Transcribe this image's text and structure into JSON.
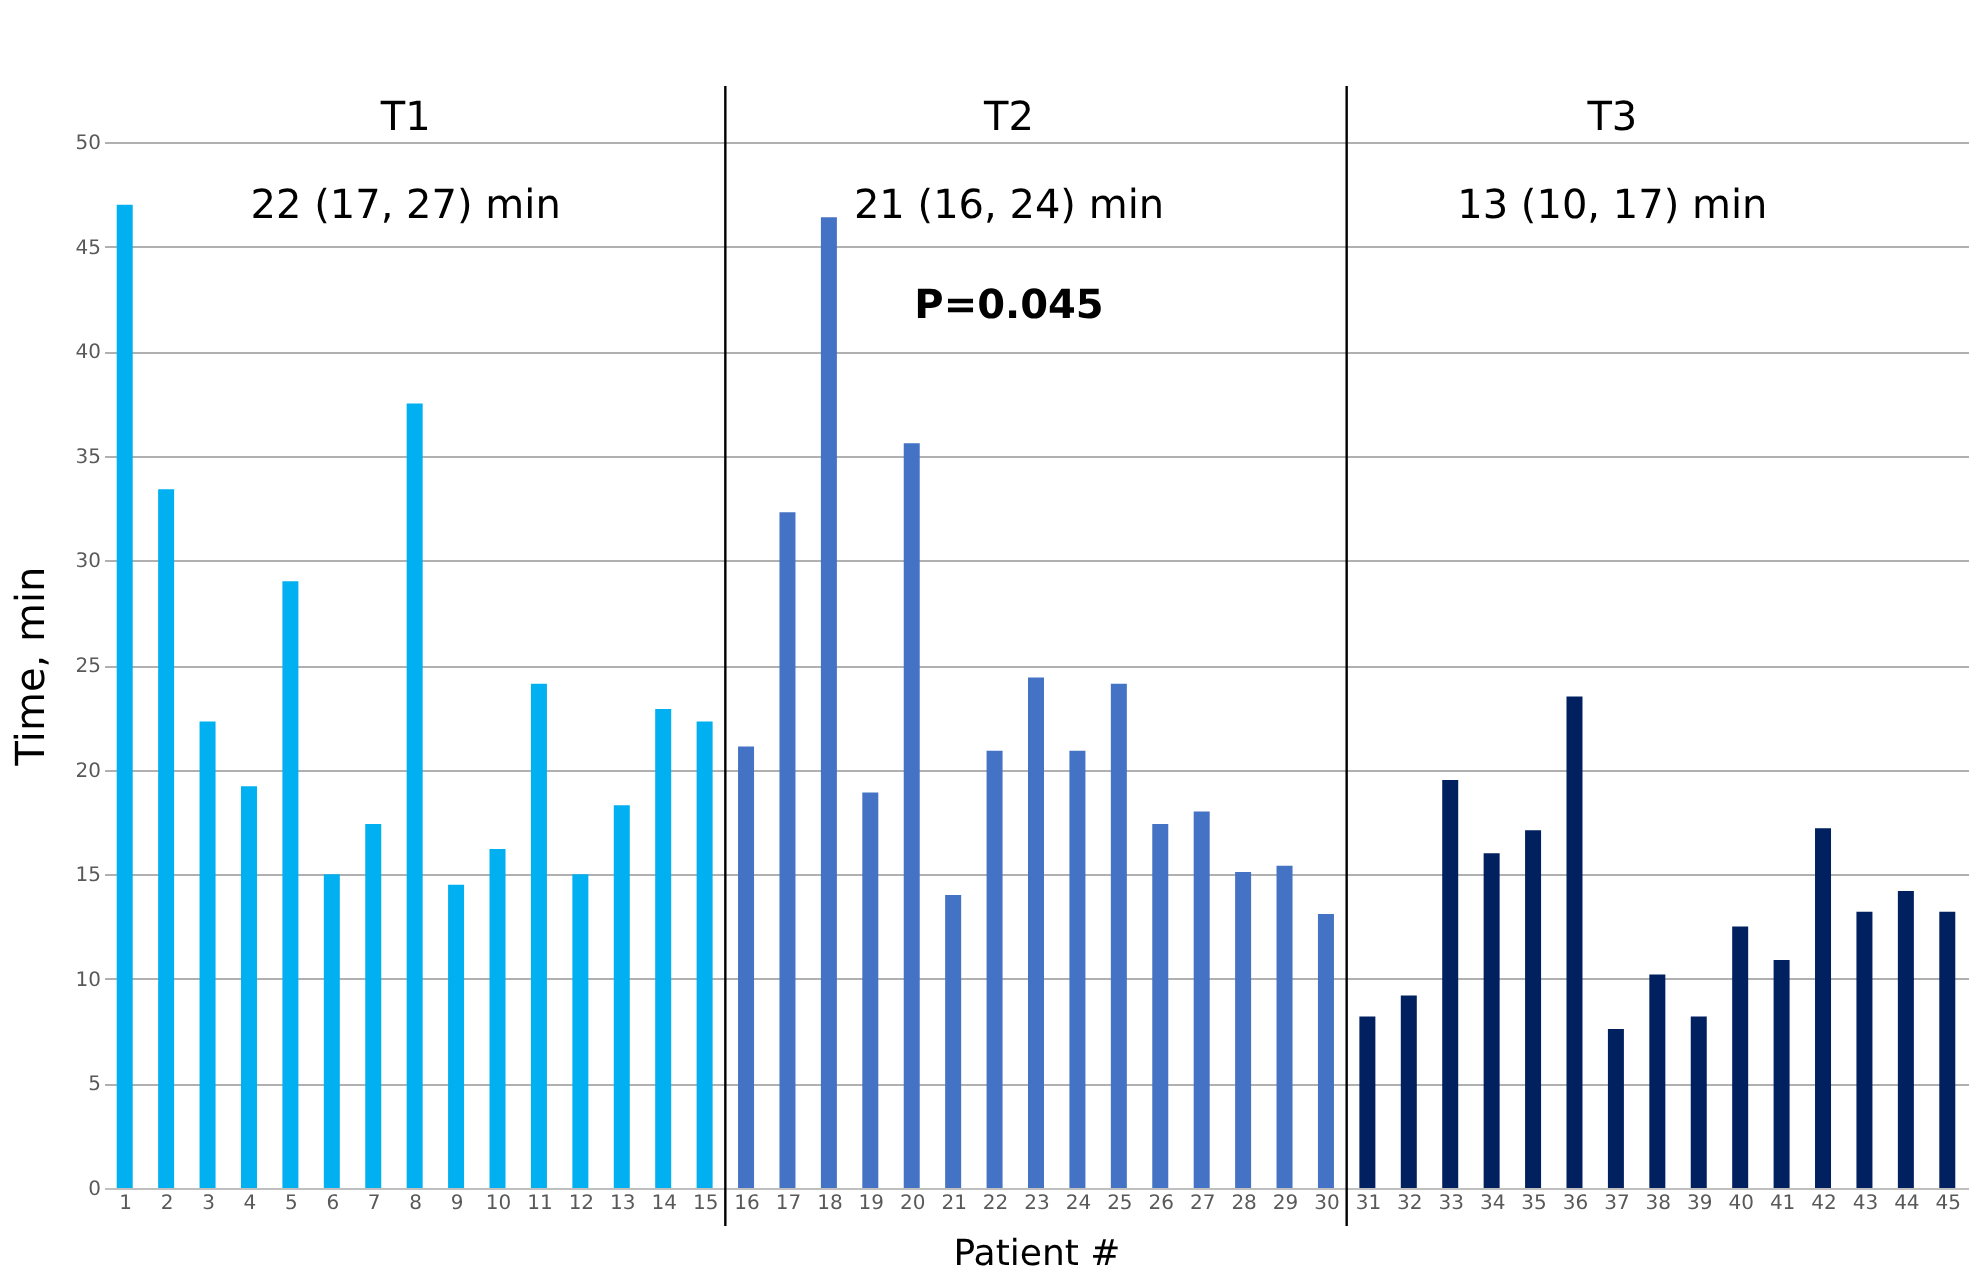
{
  "chart_data": {
    "type": "bar",
    "x": [
      1,
      2,
      3,
      4,
      5,
      6,
      7,
      8,
      9,
      10,
      11,
      12,
      13,
      14,
      15,
      16,
      17,
      18,
      19,
      20,
      21,
      22,
      23,
      24,
      25,
      26,
      27,
      28,
      29,
      30,
      31,
      32,
      33,
      34,
      35,
      36,
      37,
      38,
      39,
      40,
      41,
      42,
      43,
      44,
      45
    ],
    "values": [
      47.0,
      33.4,
      22.3,
      19.2,
      29.0,
      15.0,
      17.4,
      37.5,
      14.5,
      16.2,
      24.1,
      15.0,
      18.3,
      22.9,
      22.3,
      21.1,
      32.3,
      46.4,
      18.9,
      35.6,
      14.0,
      20.9,
      24.4,
      20.9,
      24.1,
      17.4,
      18.0,
      15.1,
      15.4,
      13.1,
      8.2,
      9.2,
      19.5,
      16.0,
      17.1,
      23.5,
      7.6,
      10.2,
      8.2,
      12.5,
      10.9,
      17.2,
      13.2,
      14.2,
      13.2
    ],
    "colors": [
      "#00b0f0",
      "#00b0f0",
      "#00b0f0",
      "#00b0f0",
      "#00b0f0",
      "#00b0f0",
      "#00b0f0",
      "#00b0f0",
      "#00b0f0",
      "#00b0f0",
      "#00b0f0",
      "#00b0f0",
      "#00b0f0",
      "#00b0f0",
      "#00b0f0",
      "#4472c4",
      "#4472c4",
      "#4472c4",
      "#4472c4",
      "#4472c4",
      "#4472c4",
      "#4472c4",
      "#4472c4",
      "#4472c4",
      "#4472c4",
      "#4472c4",
      "#4472c4",
      "#4472c4",
      "#4472c4",
      "#4472c4",
      "#002060",
      "#002060",
      "#002060",
      "#002060",
      "#002060",
      "#002060",
      "#002060",
      "#002060",
      "#002060",
      "#002060",
      "#002060",
      "#002060",
      "#002060",
      "#002060",
      "#002060"
    ],
    "xlabel": "Patient #",
    "ylabel": "Time, min",
    "xlim": [
      0.5,
      45.5
    ],
    "xticks": [
      1,
      2,
      3,
      4,
      5,
      6,
      7,
      8,
      9,
      10,
      11,
      12,
      13,
      14,
      15,
      16,
      17,
      18,
      19,
      20,
      21,
      22,
      23,
      24,
      25,
      26,
      27,
      28,
      29,
      30,
      31,
      32,
      33,
      34,
      35,
      36,
      37,
      38,
      39,
      40,
      41,
      42,
      43,
      44,
      45
    ],
    "ylim": [
      0,
      50
    ],
    "yticks": [
      0,
      5,
      10,
      15,
      20,
      25,
      30,
      35,
      40,
      45,
      50
    ],
    "grid": "y",
    "ref_lines": [
      {
        "axis": "x",
        "value": 15.5,
        "color": "#000000"
      },
      {
        "axis": "x",
        "value": 30.5,
        "color": "#000000"
      }
    ],
    "annotations": [
      "T1",
      "T2",
      "T3",
      "22 (17, 27) min",
      "21 (16, 24) min",
      "13 (10, 17) min",
      "P=0.045"
    ]
  }
}
